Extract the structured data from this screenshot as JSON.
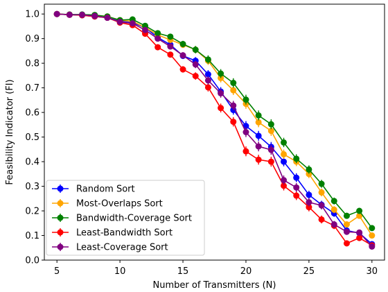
{
  "chart_data": {
    "type": "line",
    "xlabel": "Number of Transmitters (N)",
    "ylabel": "Feasibility Indicator (FI)",
    "xlim": [
      4,
      31
    ],
    "ylim": [
      0,
      1.04
    ],
    "xticks": [
      5,
      10,
      15,
      20,
      25,
      30
    ],
    "yticks": [
      0.0,
      0.1,
      0.2,
      0.3,
      0.4,
      0.5,
      0.6,
      0.7,
      0.8,
      0.9,
      1.0
    ],
    "grid": false,
    "legend_position": "lower-left",
    "x": [
      5,
      6,
      7,
      8,
      9,
      10,
      11,
      12,
      13,
      14,
      15,
      16,
      17,
      18,
      19,
      20,
      21,
      22,
      23,
      24,
      25,
      26,
      27,
      28,
      29,
      30
    ],
    "series": [
      {
        "name": "Random Sort",
        "color": "#0000ff",
        "values": [
          1.0,
          0.997,
          0.995,
          0.99,
          0.985,
          0.97,
          0.965,
          0.945,
          0.905,
          0.875,
          0.83,
          0.81,
          0.755,
          0.685,
          0.61,
          0.545,
          0.505,
          0.46,
          0.4,
          0.335,
          0.265,
          0.225,
          0.19,
          0.12,
          0.11,
          0.065
        ],
        "errors": [
          0.004,
          0.004,
          0.004,
          0.005,
          0.006,
          0.007,
          0.008,
          0.009,
          0.01,
          0.012,
          0.013,
          0.015,
          0.017,
          0.018,
          0.019,
          0.02,
          0.02,
          0.02,
          0.019,
          0.018,
          0.017,
          0.016,
          0.014,
          0.012,
          0.011,
          0.01
        ]
      },
      {
        "name": "Most-Overlaps Sort",
        "color": "#ffa500",
        "values": [
          1.0,
          0.997,
          0.997,
          0.995,
          0.99,
          0.975,
          0.97,
          0.945,
          0.915,
          0.895,
          0.875,
          0.855,
          0.81,
          0.74,
          0.69,
          0.635,
          0.56,
          0.525,
          0.43,
          0.4,
          0.35,
          0.275,
          0.205,
          0.145,
          0.18,
          0.1
        ],
        "errors": [
          0.004,
          0.004,
          0.004,
          0.005,
          0.006,
          0.007,
          0.008,
          0.009,
          0.01,
          0.012,
          0.013,
          0.015,
          0.017,
          0.018,
          0.019,
          0.02,
          0.02,
          0.02,
          0.019,
          0.018,
          0.017,
          0.016,
          0.014,
          0.012,
          0.011,
          0.01
        ]
      },
      {
        "name": "Bandwidth-Coverage Sort",
        "color": "#008000",
        "values": [
          1.0,
          0.998,
          0.998,
          0.996,
          0.99,
          0.975,
          0.978,
          0.952,
          0.922,
          0.908,
          0.878,
          0.855,
          0.815,
          0.758,
          0.72,
          0.652,
          0.588,
          0.552,
          0.478,
          0.412,
          0.368,
          0.31,
          0.24,
          0.18,
          0.2,
          0.13
        ],
        "errors": [
          0.004,
          0.004,
          0.004,
          0.005,
          0.006,
          0.007,
          0.008,
          0.009,
          0.01,
          0.012,
          0.013,
          0.015,
          0.017,
          0.018,
          0.019,
          0.02,
          0.02,
          0.02,
          0.019,
          0.018,
          0.017,
          0.016,
          0.014,
          0.012,
          0.011,
          0.01
        ]
      },
      {
        "name": "Least-Bandwidth Sort",
        "color": "#ff0000",
        "values": [
          1.0,
          0.997,
          0.995,
          0.99,
          0.985,
          0.965,
          0.955,
          0.92,
          0.865,
          0.835,
          0.775,
          0.748,
          0.702,
          0.618,
          0.562,
          0.442,
          0.408,
          0.4,
          0.302,
          0.262,
          0.215,
          0.165,
          0.14,
          0.068,
          0.09,
          0.06
        ],
        "errors": [
          0.004,
          0.004,
          0.004,
          0.005,
          0.006,
          0.007,
          0.008,
          0.009,
          0.01,
          0.012,
          0.013,
          0.015,
          0.017,
          0.018,
          0.019,
          0.02,
          0.02,
          0.02,
          0.019,
          0.018,
          0.017,
          0.016,
          0.014,
          0.012,
          0.011,
          0.01
        ]
      },
      {
        "name": "Least-Coverage Sort",
        "color": "#800080",
        "values": [
          1.0,
          0.997,
          0.997,
          0.992,
          0.985,
          0.968,
          0.962,
          0.935,
          0.9,
          0.868,
          0.832,
          0.795,
          0.73,
          0.678,
          0.628,
          0.52,
          0.462,
          0.448,
          0.325,
          0.295,
          0.235,
          0.222,
          0.145,
          0.115,
          0.112,
          0.055
        ],
        "errors": [
          0.004,
          0.004,
          0.004,
          0.005,
          0.006,
          0.007,
          0.008,
          0.009,
          0.01,
          0.012,
          0.013,
          0.015,
          0.017,
          0.018,
          0.019,
          0.02,
          0.02,
          0.02,
          0.019,
          0.018,
          0.017,
          0.016,
          0.014,
          0.012,
          0.011,
          0.01
        ]
      }
    ]
  }
}
